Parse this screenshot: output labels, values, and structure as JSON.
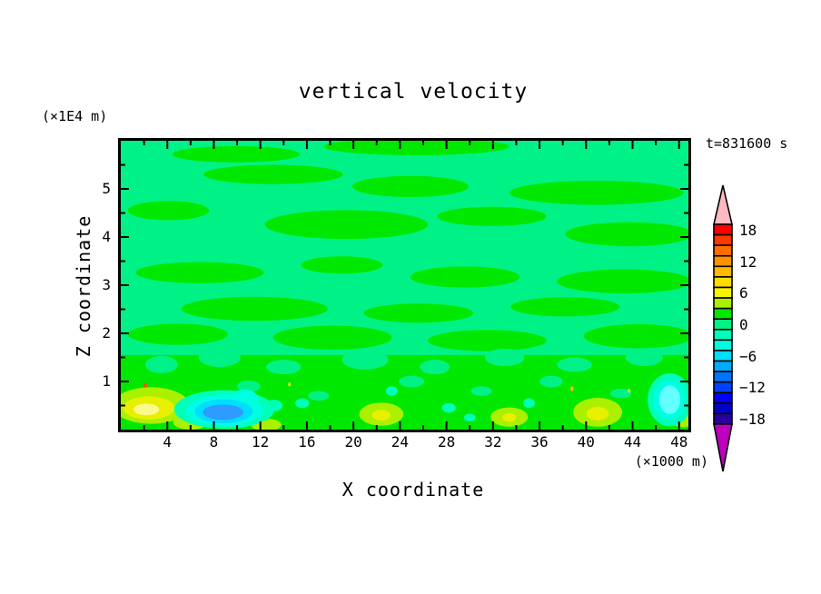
{
  "chart_data": {
    "type": "heatmap",
    "subtype": "filled-contour",
    "title": "vertical velocity",
    "time_annotation": "t=831600 s",
    "xlabel": "X coordinate",
    "ylabel": "Z coordinate",
    "x_unit": "(×1000 m)",
    "y_unit": "(×1E4 m)",
    "xlim": [
      0,
      48.8
    ],
    "zlim": [
      0,
      6
    ],
    "x_ticks": [
      4,
      8,
      12,
      16,
      20,
      24,
      28,
      32,
      36,
      40,
      44,
      48
    ],
    "x_minor_step": 2,
    "z_ticks": [
      1,
      2,
      3,
      4,
      5
    ],
    "z_minor_step": 0.5,
    "grid": false,
    "contour_interval": 2,
    "colorbar": {
      "position": "right",
      "tick_values": [
        18,
        12,
        6,
        0,
        -6,
        -12,
        -18
      ],
      "over_color": "#ffb9c3",
      "under_color": "#be00be",
      "levels": [
        {
          "value": 18,
          "color": "#ff0000"
        },
        {
          "value": 16,
          "color": "#ff3700"
        },
        {
          "value": 14,
          "color": "#ff6e00"
        },
        {
          "value": 12,
          "color": "#ff9100"
        },
        {
          "value": 10,
          "color": "#ffb900"
        },
        {
          "value": 8,
          "color": "#ffdc00"
        },
        {
          "value": 6,
          "color": "#f5f500"
        },
        {
          "value": 4,
          "color": "#aaf000"
        },
        {
          "value": 2,
          "color": "#00e800"
        },
        {
          "value": 0,
          "color": "#00f287"
        },
        {
          "value": -2,
          "color": "#00ffb9"
        },
        {
          "value": -4,
          "color": "#00ffe1"
        },
        {
          "value": -6,
          "color": "#00deff"
        },
        {
          "value": -8,
          "color": "#00aaff"
        },
        {
          "value": -10,
          "color": "#0073ff"
        },
        {
          "value": -12,
          "color": "#0041ff"
        },
        {
          "value": -14,
          "color": "#0000ff"
        },
        {
          "value": -16,
          "color": "#0000c8"
        },
        {
          "value": -18,
          "color": "#28009b"
        }
      ]
    },
    "field": {
      "background_level": 0,
      "lower_band": {
        "level": 2,
        "z_top": 1.55
      },
      "streak_format": [
        "x",
        "z",
        "rx",
        "rz"
      ],
      "streaks_level2": [
        [
          9.9,
          5.72,
          5.5,
          0.17
        ],
        [
          25.4,
          5.88,
          8.0,
          0.18
        ],
        [
          13.1,
          5.3,
          6.0,
          0.2
        ],
        [
          24.9,
          5.05,
          5.0,
          0.22
        ],
        [
          40.9,
          4.92,
          7.5,
          0.25
        ],
        [
          4.1,
          4.55,
          3.5,
          0.2
        ],
        [
          19.4,
          4.26,
          7.0,
          0.3
        ],
        [
          31.9,
          4.43,
          4.7,
          0.2
        ],
        [
          43.7,
          4.06,
          5.5,
          0.25
        ],
        [
          6.8,
          3.26,
          5.5,
          0.22
        ],
        [
          19.0,
          3.42,
          3.5,
          0.18
        ],
        [
          29.6,
          3.17,
          4.7,
          0.22
        ],
        [
          43.3,
          3.08,
          5.8,
          0.25
        ],
        [
          11.5,
          2.51,
          6.3,
          0.25
        ],
        [
          25.6,
          2.42,
          4.7,
          0.2
        ],
        [
          38.2,
          2.55,
          4.7,
          0.2
        ],
        [
          4.9,
          1.98,
          4.3,
          0.22
        ],
        [
          18.2,
          1.91,
          5.1,
          0.25
        ],
        [
          31.5,
          1.85,
          5.1,
          0.22
        ],
        [
          44.5,
          1.94,
          4.7,
          0.25
        ]
      ],
      "speckles_level0": [
        [
          3.5,
          1.35,
          1.4,
          0.18
        ],
        [
          8.5,
          1.5,
          1.8,
          0.2
        ],
        [
          14.0,
          1.3,
          1.5,
          0.15
        ],
        [
          21.0,
          1.45,
          2.0,
          0.2
        ],
        [
          27.0,
          1.3,
          1.3,
          0.15
        ],
        [
          33.0,
          1.5,
          1.7,
          0.18
        ],
        [
          39.0,
          1.35,
          1.5,
          0.15
        ],
        [
          45.0,
          1.5,
          1.6,
          0.18
        ],
        [
          11.0,
          0.9,
          1.0,
          0.12
        ],
        [
          17.0,
          0.7,
          0.9,
          0.1
        ],
        [
          25.0,
          1.0,
          1.1,
          0.12
        ],
        [
          31.0,
          0.8,
          0.9,
          0.1
        ],
        [
          37.0,
          1.0,
          1.0,
          0.12
        ],
        [
          47.0,
          1.0,
          1.0,
          0.12
        ],
        [
          6.5,
          0.6,
          0.8,
          0.1
        ],
        [
          43.0,
          0.75,
          0.9,
          0.1
        ]
      ],
      "feature_format": [
        "x",
        "z",
        "rx",
        "rz",
        "color"
      ],
      "features": [
        [
          13.2,
          0.5,
          0.7,
          0.12,
          "#00ffb9"
        ],
        [
          15.6,
          0.55,
          0.6,
          0.1,
          "#00ffb9"
        ],
        [
          23.3,
          0.8,
          0.5,
          0.1,
          "#00ffb9"
        ],
        [
          28.2,
          0.45,
          0.6,
          0.1,
          "#00ffb9"
        ],
        [
          35.1,
          0.55,
          0.5,
          0.1,
          "#00ffb9"
        ],
        [
          30.0,
          0.25,
          0.5,
          0.08,
          "#00ffb9"
        ],
        [
          6.0,
          0.15,
          1.5,
          0.15,
          "#aaf000"
        ],
        [
          12.5,
          0.1,
          1.3,
          0.13,
          "#aaf000"
        ],
        [
          2.6,
          0.5,
          3.3,
          0.38,
          "#aaf000"
        ],
        [
          2.4,
          0.45,
          2.2,
          0.24,
          "#e8f000"
        ],
        [
          2.2,
          0.42,
          1.1,
          0.12,
          "#fafa8c"
        ],
        [
          8.9,
          0.42,
          4.3,
          0.4,
          "#00ffb9"
        ],
        [
          10.6,
          0.65,
          1.2,
          0.18,
          "#00ffe1"
        ],
        [
          8.9,
          0.4,
          3.3,
          0.33,
          "#00ffe1"
        ],
        [
          8.85,
          0.38,
          2.5,
          0.25,
          "#00deff"
        ],
        [
          8.8,
          0.36,
          1.75,
          0.16,
          "#2d9bff"
        ],
        [
          22.4,
          0.32,
          1.9,
          0.24,
          "#aaf000"
        ],
        [
          22.4,
          0.3,
          0.8,
          0.11,
          "#e8f000"
        ],
        [
          33.4,
          0.26,
          1.6,
          0.2,
          "#aaf000"
        ],
        [
          33.4,
          0.25,
          0.6,
          0.09,
          "#e8f000"
        ],
        [
          41.0,
          0.36,
          2.1,
          0.3,
          "#aaf000"
        ],
        [
          41.0,
          0.33,
          0.95,
          0.14,
          "#e8f000"
        ],
        [
          48.3,
          0.3,
          1.3,
          0.25,
          "#aaf000"
        ],
        [
          47.2,
          0.62,
          1.9,
          0.55,
          "#00ffb9"
        ],
        [
          47.2,
          0.62,
          1.4,
          0.42,
          "#00ffe1"
        ],
        [
          47.2,
          0.62,
          0.9,
          0.3,
          "#64ffff"
        ],
        [
          2.1,
          0.92,
          0.16,
          0.05,
          "#ff5000"
        ],
        [
          38.8,
          0.85,
          0.14,
          0.05,
          "#ffb900"
        ],
        [
          43.7,
          0.81,
          0.12,
          0.04,
          "#e8f000"
        ],
        [
          14.5,
          0.94,
          0.12,
          0.04,
          "#e8f000"
        ]
      ]
    }
  }
}
